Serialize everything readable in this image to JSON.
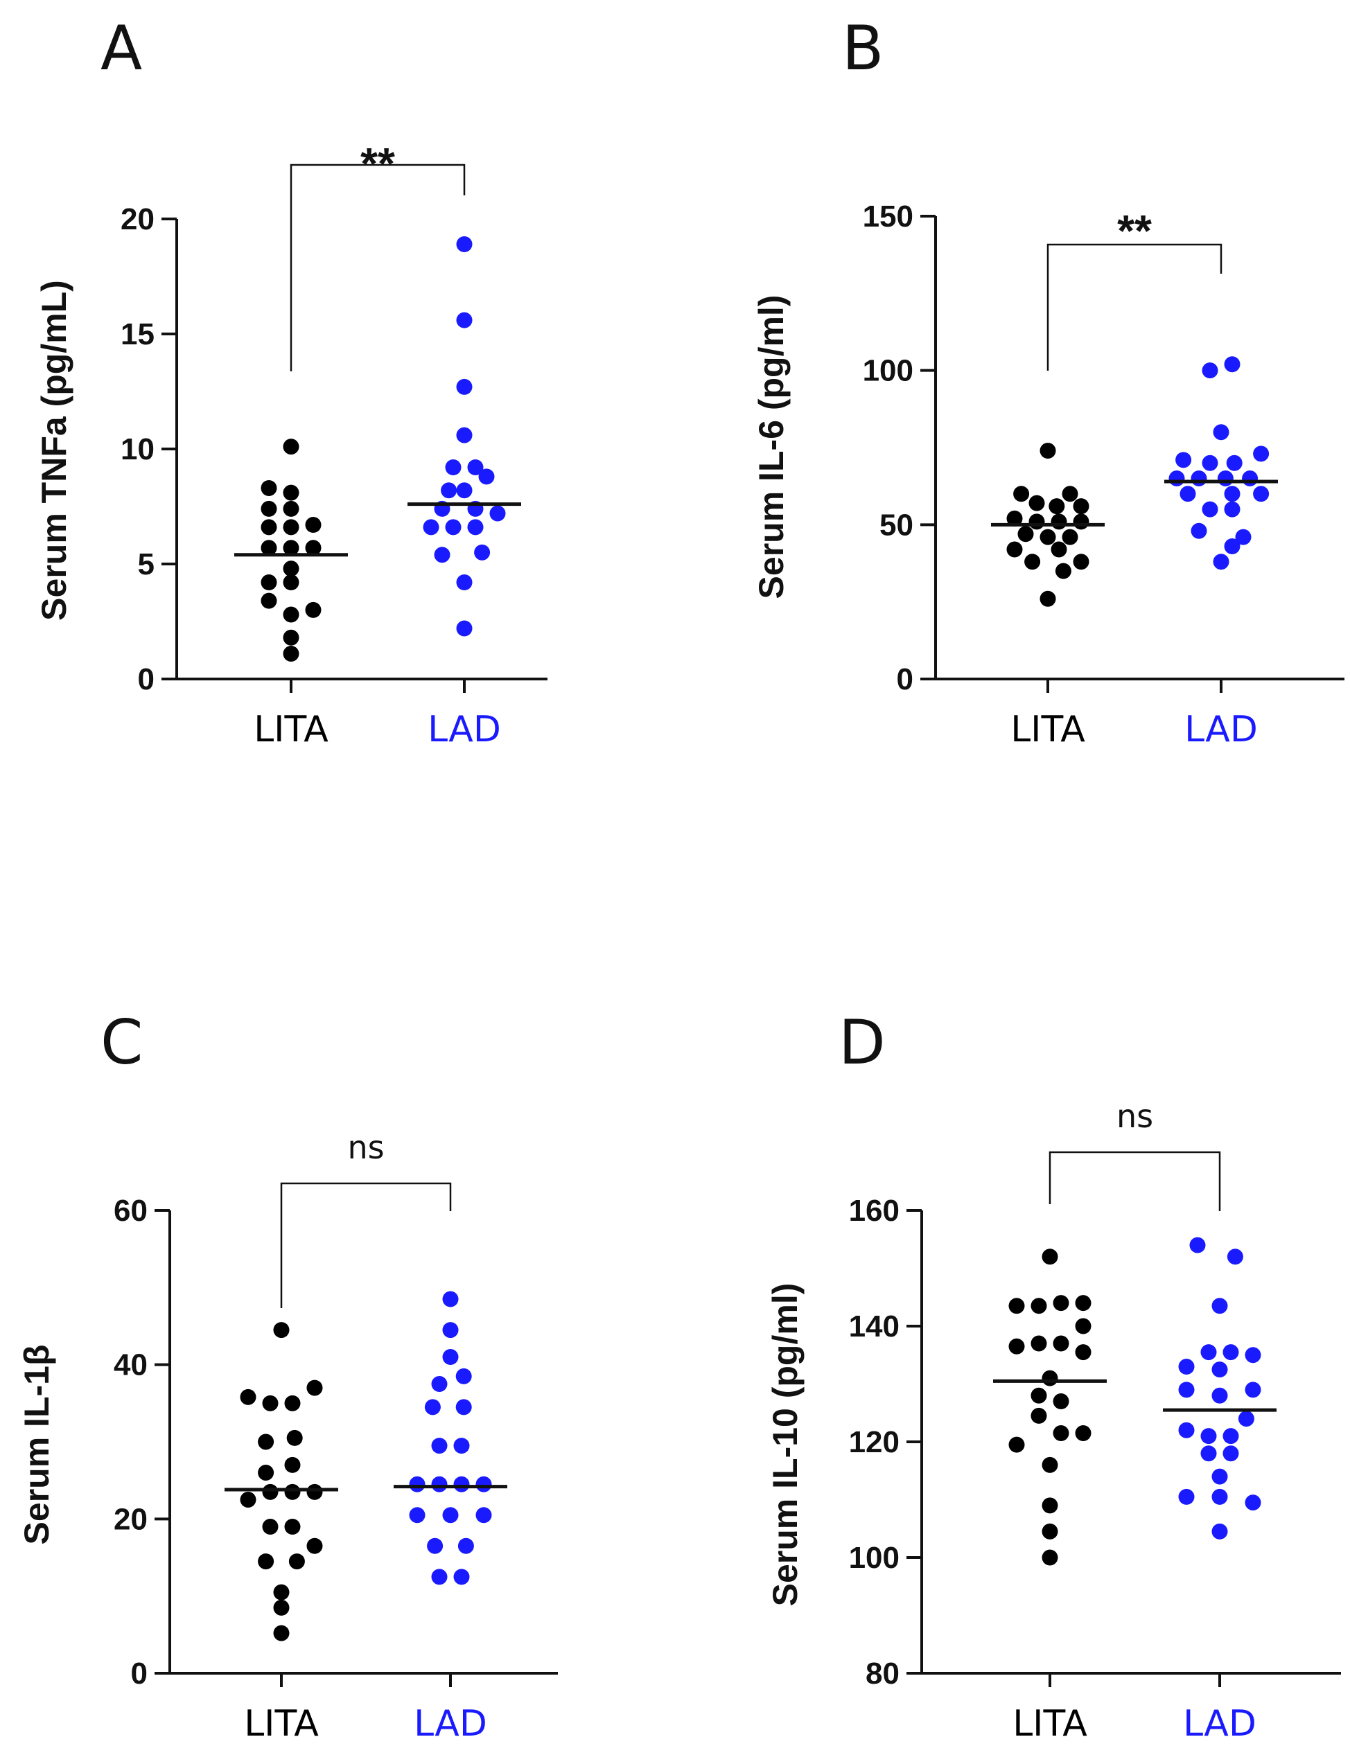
{
  "chart_data": [
    {
      "panel": "A",
      "type": "scatter",
      "ylabel": "Serum TNFa (pg/mL)",
      "ylim": [
        0,
        20
      ],
      "yticks": [
        0,
        5,
        10,
        15,
        20
      ],
      "categories": [
        "LITA",
        "LAD"
      ],
      "category_colors": [
        "#000000",
        "#1a1aff"
      ],
      "significance": "**",
      "series": [
        {
          "name": "LITA",
          "median": 5.4,
          "points": [
            {
              "dx": -1,
              "y": 8.3
            },
            {
              "dx": 0,
              "y": 10.1
            },
            {
              "dx": 0,
              "y": 8.1
            },
            {
              "dx": -1,
              "y": 7.4
            },
            {
              "dx": 0,
              "y": 7.4
            },
            {
              "dx": 1,
              "y": 6.7
            },
            {
              "dx": -1,
              "y": 6.6
            },
            {
              "dx": 0,
              "y": 6.6
            },
            {
              "dx": -1,
              "y": 5.7
            },
            {
              "dx": 0,
              "y": 5.7
            },
            {
              "dx": 1,
              "y": 5.7
            },
            {
              "dx": 0,
              "y": 4.8
            },
            {
              "dx": -1,
              "y": 4.2
            },
            {
              "dx": 0,
              "y": 4.2
            },
            {
              "dx": -1,
              "y": 3.4
            },
            {
              "dx": 1,
              "y": 3.0
            },
            {
              "dx": 0,
              "y": 2.8
            },
            {
              "dx": 0,
              "y": 1.8
            },
            {
              "dx": 0,
              "y": 1.1
            }
          ]
        },
        {
          "name": "LAD",
          "median": 7.6,
          "points": [
            {
              "dx": 0,
              "y": 18.9
            },
            {
              "dx": 0,
              "y": 15.6
            },
            {
              "dx": 0,
              "y": 12.7
            },
            {
              "dx": 0,
              "y": 10.6
            },
            {
              "dx": -0.5,
              "y": 9.2
            },
            {
              "dx": 0.5,
              "y": 9.2
            },
            {
              "dx": 1,
              "y": 8.8
            },
            {
              "dx": -0.7,
              "y": 8.2
            },
            {
              "dx": 0,
              "y": 8.2
            },
            {
              "dx": -1,
              "y": 7.4
            },
            {
              "dx": 0.5,
              "y": 7.4
            },
            {
              "dx": 1.5,
              "y": 7.2
            },
            {
              "dx": -1.5,
              "y": 6.6
            },
            {
              "dx": -0.5,
              "y": 6.6
            },
            {
              "dx": 0.5,
              "y": 6.6
            },
            {
              "dx": -1,
              "y": 5.4
            },
            {
              "dx": 0.8,
              "y": 5.5
            },
            {
              "dx": 0,
              "y": 4.2
            },
            {
              "dx": 0,
              "y": 2.2
            }
          ]
        }
      ]
    },
    {
      "panel": "B",
      "type": "scatter",
      "ylabel": "Serum IL-6 (pg/ml)",
      "ylim": [
        0,
        150
      ],
      "yticks": [
        0,
        50,
        100,
        150
      ],
      "categories": [
        "LITA",
        "LAD"
      ],
      "category_colors": [
        "#000000",
        "#1a1aff"
      ],
      "significance": "**",
      "series": [
        {
          "name": "LITA",
          "median": 50,
          "points": [
            {
              "dx": 0,
              "y": 74
            },
            {
              "dx": -1.2,
              "y": 60
            },
            {
              "dx": 1,
              "y": 60
            },
            {
              "dx": -0.5,
              "y": 57
            },
            {
              "dx": 1.5,
              "y": 56
            },
            {
              "dx": 0.4,
              "y": 56
            },
            {
              "dx": -1.5,
              "y": 52
            },
            {
              "dx": -0.5,
              "y": 51
            },
            {
              "dx": 0.5,
              "y": 51
            },
            {
              "dx": 1.5,
              "y": 51
            },
            {
              "dx": -1,
              "y": 47
            },
            {
              "dx": 0,
              "y": 46
            },
            {
              "dx": 1,
              "y": 46
            },
            {
              "dx": -1.5,
              "y": 42
            },
            {
              "dx": 0.5,
              "y": 42
            },
            {
              "dx": -0.7,
              "y": 38
            },
            {
              "dx": 1.5,
              "y": 38
            },
            {
              "dx": 0.7,
              "y": 35
            },
            {
              "dx": 0,
              "y": 26
            }
          ]
        },
        {
          "name": "LAD",
          "median": 64,
          "points": [
            {
              "dx": 0.5,
              "y": 102
            },
            {
              "dx": -0.5,
              "y": 100
            },
            {
              "dx": 0,
              "y": 80
            },
            {
              "dx": -1.7,
              "y": 71
            },
            {
              "dx": -0.5,
              "y": 70
            },
            {
              "dx": 0.6,
              "y": 70
            },
            {
              "dx": 1.8,
              "y": 73
            },
            {
              "dx": -2,
              "y": 65
            },
            {
              "dx": -1,
              "y": 65
            },
            {
              "dx": 0.2,
              "y": 65
            },
            {
              "dx": 1.3,
              "y": 65
            },
            {
              "dx": -1.5,
              "y": 60
            },
            {
              "dx": 0.5,
              "y": 60
            },
            {
              "dx": 1.8,
              "y": 60
            },
            {
              "dx": -0.5,
              "y": 55
            },
            {
              "dx": 0.5,
              "y": 55
            },
            {
              "dx": -1,
              "y": 48
            },
            {
              "dx": 1,
              "y": 46
            },
            {
              "dx": 0.5,
              "y": 43
            },
            {
              "dx": 0,
              "y": 38
            }
          ]
        }
      ]
    },
    {
      "panel": "C",
      "type": "scatter",
      "ylabel": "Serum IL-1β",
      "ylim": [
        0,
        60
      ],
      "yticks": [
        0,
        20,
        40,
        60
      ],
      "categories": [
        "LITA",
        "LAD"
      ],
      "category_colors": [
        "#000000",
        "#1a1aff"
      ],
      "significance": "ns",
      "series": [
        {
          "name": "LITA",
          "median": 23.8,
          "points": [
            {
              "dx": 0,
              "y": 44.5
            },
            {
              "dx": -1.5,
              "y": 35.8
            },
            {
              "dx": -0.5,
              "y": 35
            },
            {
              "dx": 0.5,
              "y": 35
            },
            {
              "dx": 1.5,
              "y": 37
            },
            {
              "dx": -0.7,
              "y": 30
            },
            {
              "dx": 0.6,
              "y": 30.5
            },
            {
              "dx": -1.5,
              "y": 22.5
            },
            {
              "dx": -0.5,
              "y": 23.5
            },
            {
              "dx": 0.5,
              "y": 23.5
            },
            {
              "dx": 1.5,
              "y": 23.5
            },
            {
              "dx": -0.7,
              "y": 26
            },
            {
              "dx": 0.5,
              "y": 27
            },
            {
              "dx": -0.5,
              "y": 19
            },
            {
              "dx": 0.5,
              "y": 19
            },
            {
              "dx": -0.7,
              "y": 14.5
            },
            {
              "dx": 0.7,
              "y": 14.5
            },
            {
              "dx": 1.5,
              "y": 16.5
            },
            {
              "dx": 0,
              "y": 10.5
            },
            {
              "dx": 0,
              "y": 8.5
            },
            {
              "dx": 0,
              "y": 5.2
            }
          ]
        },
        {
          "name": "LAD",
          "median": 24.2,
          "points": [
            {
              "dx": 0,
              "y": 48.5
            },
            {
              "dx": 0,
              "y": 44.5
            },
            {
              "dx": 0,
              "y": 41
            },
            {
              "dx": -0.5,
              "y": 37.5
            },
            {
              "dx": 0.6,
              "y": 38.5
            },
            {
              "dx": -0.8,
              "y": 34.5
            },
            {
              "dx": 0.6,
              "y": 34.5
            },
            {
              "dx": -0.5,
              "y": 29.5
            },
            {
              "dx": 0.5,
              "y": 29.5
            },
            {
              "dx": -1.5,
              "y": 24.5
            },
            {
              "dx": -0.5,
              "y": 24.5
            },
            {
              "dx": 0.5,
              "y": 24.5
            },
            {
              "dx": 1.5,
              "y": 24.5
            },
            {
              "dx": -1.5,
              "y": 20.5
            },
            {
              "dx": 0,
              "y": 20.5
            },
            {
              "dx": 1.5,
              "y": 20.5
            },
            {
              "dx": -0.7,
              "y": 16.5
            },
            {
              "dx": 0.7,
              "y": 16.5
            },
            {
              "dx": -0.5,
              "y": 12.5
            },
            {
              "dx": 0.5,
              "y": 12.5
            }
          ]
        }
      ]
    },
    {
      "panel": "D",
      "type": "scatter",
      "ylabel": "Serum IL-10 (pg/ml)",
      "ylim": [
        80,
        160
      ],
      "yticks": [
        80,
        100,
        120,
        140,
        160
      ],
      "categories": [
        "LITA",
        "LAD"
      ],
      "category_colors": [
        "#000000",
        "#1a1aff"
      ],
      "significance": "ns",
      "series": [
        {
          "name": "LITA",
          "median": 130.5,
          "points": [
            {
              "dx": 0,
              "y": 152
            },
            {
              "dx": -1.5,
              "y": 143.5
            },
            {
              "dx": -0.5,
              "y": 143.5
            },
            {
              "dx": 0.5,
              "y": 144
            },
            {
              "dx": 1.5,
              "y": 144
            },
            {
              "dx": -1.5,
              "y": 136.5
            },
            {
              "dx": -0.5,
              "y": 137
            },
            {
              "dx": 0.5,
              "y": 137
            },
            {
              "dx": 1.5,
              "y": 140
            },
            {
              "dx": 1.5,
              "y": 135.5
            },
            {
              "dx": 0,
              "y": 131
            },
            {
              "dx": -0.5,
              "y": 128
            },
            {
              "dx": 0.5,
              "y": 127
            },
            {
              "dx": -1.5,
              "y": 119.5
            },
            {
              "dx": -0.5,
              "y": 124.5
            },
            {
              "dx": 0.5,
              "y": 121.5
            },
            {
              "dx": 1.5,
              "y": 121.5
            },
            {
              "dx": 0,
              "y": 116
            },
            {
              "dx": 0,
              "y": 109
            },
            {
              "dx": 0,
              "y": 104.5
            },
            {
              "dx": 0,
              "y": 100
            }
          ]
        },
        {
          "name": "LAD",
          "median": 125.5,
          "points": [
            {
              "dx": -1,
              "y": 154
            },
            {
              "dx": 0.7,
              "y": 152
            },
            {
              "dx": 0,
              "y": 143.5
            },
            {
              "dx": -0.5,
              "y": 135.5
            },
            {
              "dx": 0.5,
              "y": 135.5
            },
            {
              "dx": 1.5,
              "y": 135
            },
            {
              "dx": -1.5,
              "y": 133
            },
            {
              "dx": -1.5,
              "y": 129
            },
            {
              "dx": 0,
              "y": 132.5
            },
            {
              "dx": 0,
              "y": 128
            },
            {
              "dx": 1.5,
              "y": 129
            },
            {
              "dx": -1.5,
              "y": 122
            },
            {
              "dx": -0.5,
              "y": 121
            },
            {
              "dx": 0.5,
              "y": 121
            },
            {
              "dx": 1.2,
              "y": 124
            },
            {
              "dx": -0.5,
              "y": 118
            },
            {
              "dx": 0.5,
              "y": 118
            },
            {
              "dx": 0,
              "y": 114
            },
            {
              "dx": -1.5,
              "y": 110.5
            },
            {
              "dx": 0,
              "y": 110.5
            },
            {
              "dx": 1.5,
              "y": 109.5
            },
            {
              "dx": 0,
              "y": 104.5
            }
          ]
        }
      ]
    }
  ]
}
